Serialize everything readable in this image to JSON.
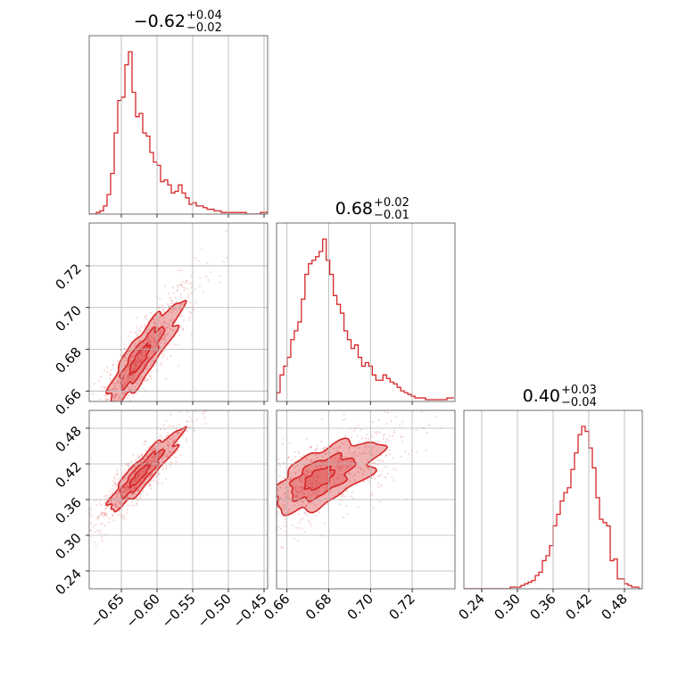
{
  "chart_data": {
    "type": "corner",
    "color": "#d62728",
    "parameters": [
      {
        "range": [
          -0.695,
          -0.445
        ],
        "ticks": [
          -0.65,
          -0.6,
          -0.55,
          -0.5,
          -0.45
        ],
        "tick_labels": [
          "−0.65",
          "−0.60",
          "−0.55",
          "−0.50",
          "−0.45"
        ],
        "title": {
          "value": "−0.62",
          "plus": "+0.04",
          "minus": "−0.02"
        },
        "hist_start": -0.695,
        "hist_step": 0.005,
        "hist": [
          0,
          0,
          1,
          2,
          5,
          12,
          25,
          50,
          70,
          72,
          92,
          100,
          75,
          60,
          62,
          50,
          48,
          38,
          32,
          30,
          20,
          21,
          18,
          13,
          14,
          18,
          13,
          10,
          6,
          7,
          5,
          5,
          4,
          3,
          3,
          2,
          2,
          1,
          1,
          1,
          1,
          1,
          1,
          1,
          0,
          0,
          0,
          0,
          1,
          1
        ]
      },
      {
        "range": [
          0.655,
          0.7405
        ],
        "ticks": [
          0.66,
          0.68,
          0.7,
          0.72
        ],
        "tick_labels": [
          "0.66",
          "0.68",
          "0.70",
          "0.72"
        ],
        "title": {
          "value": "0.68",
          "plus": "+0.02",
          "minus": "−0.01"
        },
        "hist_start": 0.655,
        "hist_step": 0.0017,
        "hist": [
          5,
          15,
          20,
          25,
          35,
          40,
          45,
          58,
          72,
          78,
          80,
          82,
          85,
          92,
          80,
          72,
          60,
          55,
          50,
          40,
          35,
          30,
          32,
          25,
          20,
          22,
          20,
          15,
          12,
          12,
          15,
          13,
          11,
          10,
          8,
          6,
          5,
          4,
          3,
          2,
          2,
          2,
          1,
          1,
          1,
          1,
          1,
          1,
          2,
          2
        ]
      },
      {
        "range": [
          0.21,
          0.51
        ],
        "ticks": [
          0.24,
          0.3,
          0.36,
          0.42,
          0.48
        ],
        "tick_labels": [
          "0.24",
          "0.30",
          "0.36",
          "0.42",
          "0.48"
        ],
        "title": {
          "value": "0.40",
          "plus": "+0.03",
          "minus": "−0.04"
        },
        "hist_start": 0.21,
        "hist_step": 0.006,
        "hist": [
          0,
          0,
          0,
          0,
          0,
          0,
          0,
          0,
          0,
          0,
          0,
          0,
          0,
          1,
          1,
          1,
          2,
          3,
          4,
          5,
          8,
          10,
          17,
          20,
          26,
          38,
          45,
          53,
          58,
          61,
          72,
          82,
          93,
          98,
          95,
          85,
          73,
          55,
          42,
          40,
          38,
          17,
          18,
          6,
          6,
          3,
          2,
          1,
          1,
          0
        ]
      }
    ],
    "pairs": [
      {
        "row": 1,
        "col": 0,
        "mean": [
          -0.625,
          0.675
        ],
        "sigma": [
          0.022,
          0.011
        ],
        "rho": 0.82,
        "levels": [
          0.6,
          1.2,
          1.9
        ]
      },
      {
        "row": 2,
        "col": 0,
        "mean": [
          -0.625,
          0.4
        ],
        "sigma": [
          0.022,
          0.03
        ],
        "rho": 0.88,
        "levels": [
          0.6,
          1.2,
          1.9
        ]
      },
      {
        "row": 2,
        "col": 1,
        "mean": [
          0.675,
          0.395
        ],
        "sigma": [
          0.011,
          0.03
        ],
        "rho": 0.55,
        "levels": [
          0.6,
          1.2,
          1.9
        ]
      }
    ],
    "grid": true,
    "legend": "none"
  }
}
